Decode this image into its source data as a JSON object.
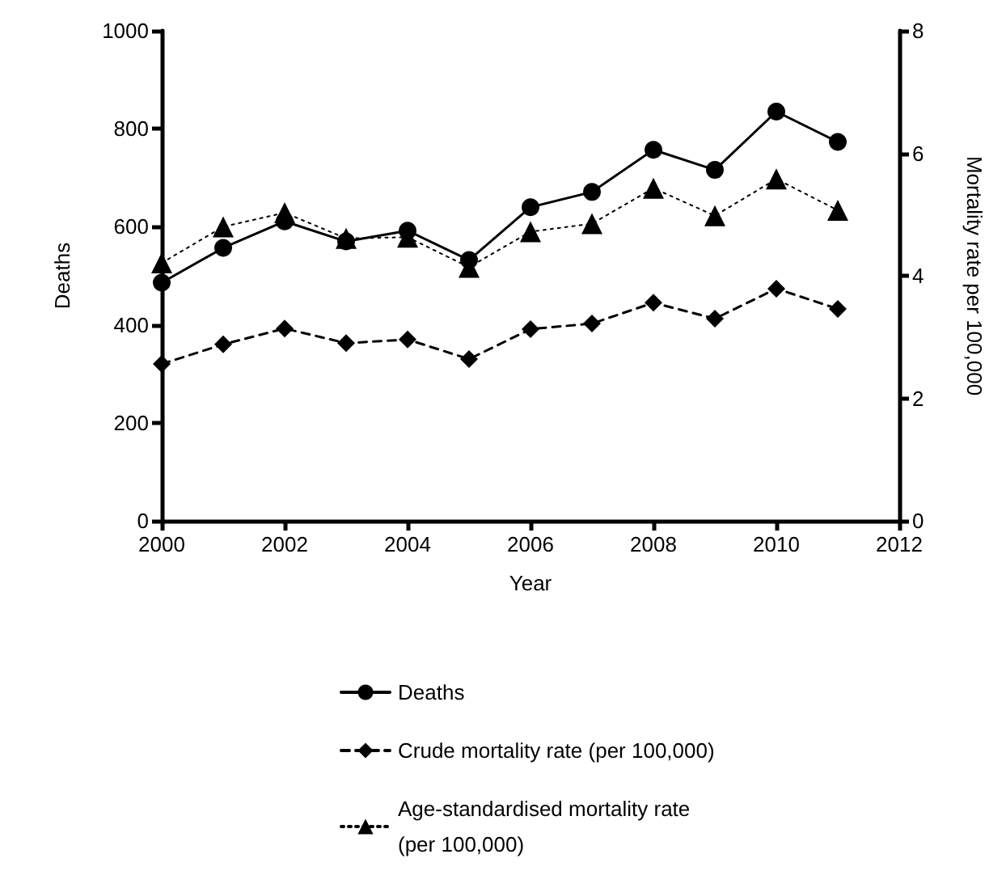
{
  "chart_data": {
    "type": "line",
    "xlabel": "Year",
    "ylabel": "Deaths",
    "y2label": "Mortality rate per 100,000",
    "x": [
      2000,
      2001,
      2002,
      2003,
      2004,
      2005,
      2006,
      2007,
      2008,
      2009,
      2010,
      2011
    ],
    "series": [
      {
        "name": "Deaths",
        "color": "#000000",
        "marker": "circle",
        "line_style": "solid",
        "values": [
          486,
          557,
          611,
          570,
          592,
          532,
          640,
          671,
          757,
          716,
          835,
          773
        ]
      },
      {
        "name": "Crude mortality rate (per 100,000)",
        "color": "#000000",
        "marker": "diamond",
        "line_style": "dashed",
        "axis": "y2",
        "values": [
          2.56,
          2.88,
          3.14,
          2.9,
          2.96,
          2.64,
          3.13,
          3.22,
          3.56,
          3.3,
          3.79,
          3.46
        ]
      },
      {
        "name": "Age-standardised mortality rate (per 100,000)",
        "color": "#000000",
        "marker": "triangle",
        "line_style": "dotted",
        "axis": "y2",
        "values": [
          4.21,
          4.8,
          5.03,
          4.61,
          4.63,
          4.14,
          4.72,
          4.85,
          5.43,
          4.98,
          5.58,
          5.07
        ]
      }
    ],
    "xlim": [
      2000,
      2012
    ],
    "xticks": [
      2000,
      2002,
      2004,
      2006,
      2008,
      2010,
      2012
    ],
    "ylim": [
      0,
      1000
    ],
    "yticks": [
      0,
      200,
      400,
      600,
      800,
      1000
    ],
    "y2lim": [
      0,
      8
    ],
    "y2ticks": [
      0,
      2,
      4,
      6,
      8
    ],
    "grid": false,
    "legend": "bottom"
  }
}
